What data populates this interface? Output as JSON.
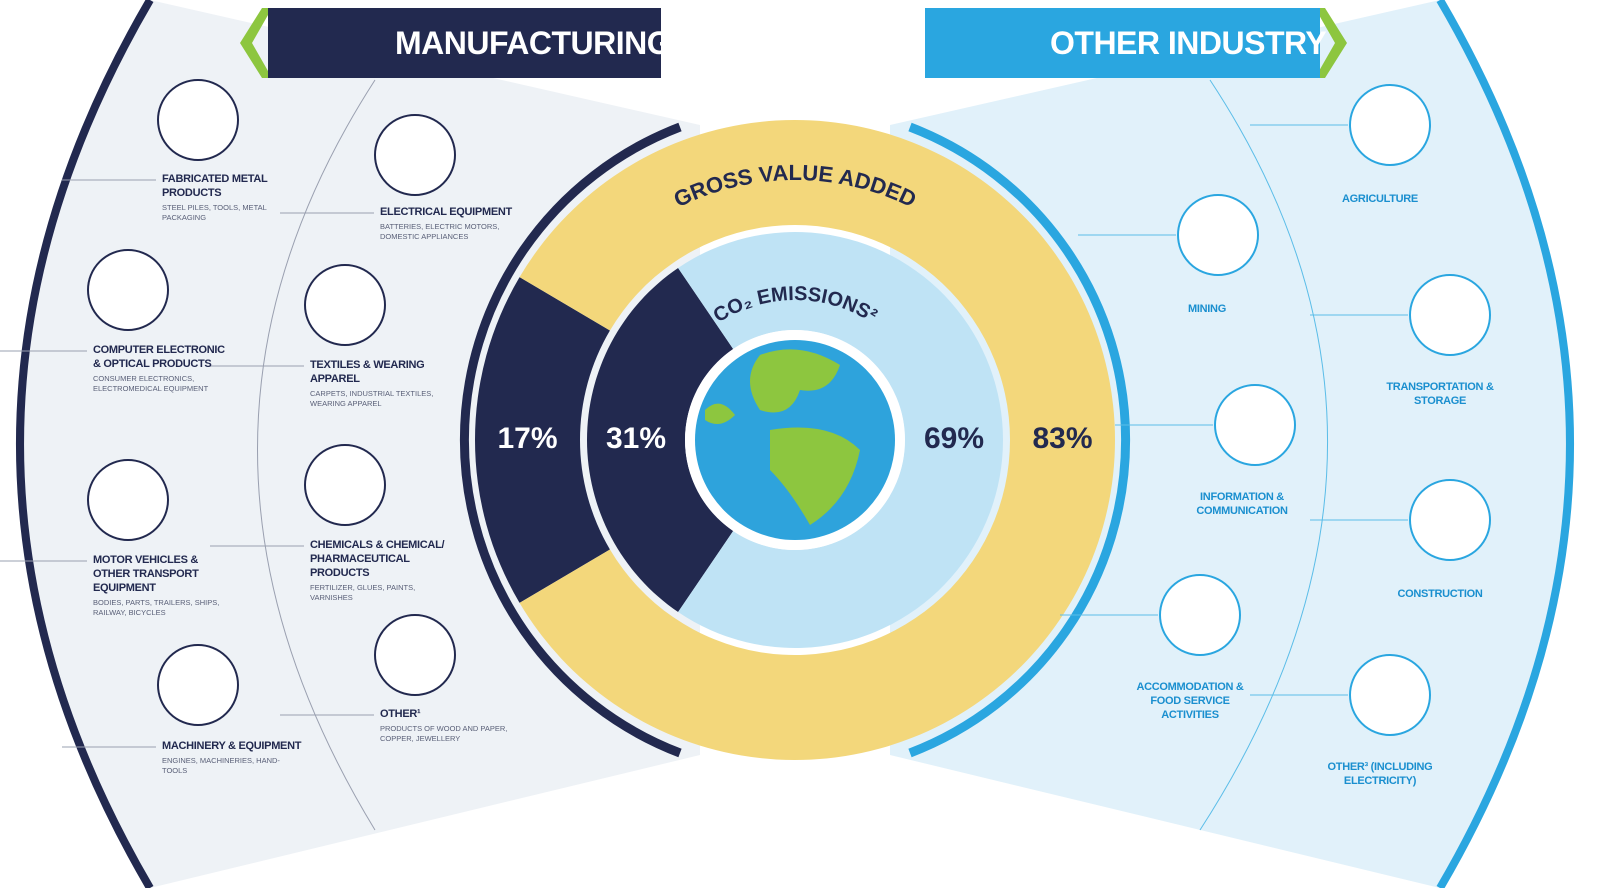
{
  "left_header": "MANUFACTURING",
  "right_header": "OTHER INDUSTRY",
  "rings": [
    {
      "title": "GROSS VALUE ADDED",
      "values": [
        17,
        83
      ],
      "value_labels": [
        "17%",
        "83%"
      ]
    },
    {
      "title": "CO₂ EMISSIONS²",
      "values": [
        31,
        69
      ],
      "value_labels": [
        "31%",
        "69%"
      ]
    }
  ],
  "manufacturing": [
    {
      "title": "FABRICATED METAL PRODUCTS",
      "examples": "STEEL PILES, TOOLS, METAL PACKAGING"
    },
    {
      "title": "ELECTRICAL EQUIPMENT",
      "examples": "BATTERIES, ELECTRIC MOTORS, DOMESTIC APPLIANCES"
    },
    {
      "title": "COMPUTER ELECTRONIC & OPTICAL PRODUCTS",
      "examples": "CONSUMER ELECTRONICS, ELECTROMEDICAL EQUIPMENT"
    },
    {
      "title": "TEXTILES & WEARING APPAREL",
      "examples": "CARPETS, INDUSTRIAL TEXTILES, WEARING APPAREL"
    },
    {
      "title": "MOTOR VEHICLES & OTHER TRANSPORT EQUIPMENT",
      "examples": "BODIES, PARTS, TRAILERS, SHIPS, RAILWAY, BICYCLES"
    },
    {
      "title": "CHEMICALS & CHEMICAL/ PHARMACEUTICAL PRODUCTS",
      "examples": "FERTILIZER, GLUES, PAINTS, VARNISHES"
    },
    {
      "title": "MACHINERY & EQUIPMENT",
      "examples": "ENGINES, MACHINERIES, HAND-TOOLS"
    },
    {
      "title": "OTHER¹",
      "examples": "PRODUCTS OF WOOD AND PAPER, COPPER, JEWELLERY"
    }
  ],
  "other_industry": [
    {
      "title": "AGRICULTURE"
    },
    {
      "title": "MINING"
    },
    {
      "title": "TRANSPORTATION & STORAGE"
    },
    {
      "title": "INFORMATION & COMMUNICATION"
    },
    {
      "title": "CONSTRUCTION"
    },
    {
      "title": "ACCOMMODATION & FOOD SERVICE ACTIVITIES"
    },
    {
      "title": "OTHER³ (INCLUDING ELECTRICITY)"
    }
  ]
}
